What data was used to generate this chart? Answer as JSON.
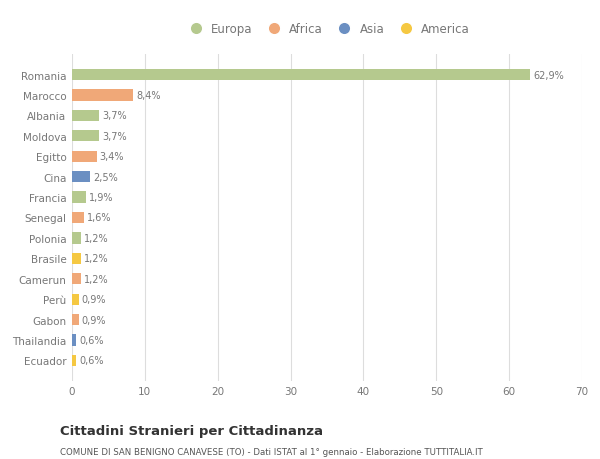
{
  "countries": [
    "Romania",
    "Marocco",
    "Albania",
    "Moldova",
    "Egitto",
    "Cina",
    "Francia",
    "Senegal",
    "Polonia",
    "Brasile",
    "Camerun",
    "Perù",
    "Gabon",
    "Thailandia",
    "Ecuador"
  ],
  "values": [
    62.9,
    8.4,
    3.7,
    3.7,
    3.4,
    2.5,
    1.9,
    1.6,
    1.2,
    1.2,
    1.2,
    0.9,
    0.9,
    0.6,
    0.6
  ],
  "labels": [
    "62,9%",
    "8,4%",
    "3,7%",
    "3,7%",
    "3,4%",
    "2,5%",
    "1,9%",
    "1,6%",
    "1,2%",
    "1,2%",
    "1,2%",
    "0,9%",
    "0,9%",
    "0,6%",
    "0,6%"
  ],
  "colors": [
    "#b5c98e",
    "#f0a878",
    "#b5c98e",
    "#b5c98e",
    "#f0a878",
    "#6b8fc2",
    "#b5c98e",
    "#f0a878",
    "#b5c98e",
    "#f5c842",
    "#f0a878",
    "#f5c842",
    "#f0a878",
    "#6b8fc2",
    "#f5c842"
  ],
  "legend_labels": [
    "Europa",
    "Africa",
    "Asia",
    "America"
  ],
  "legend_colors": [
    "#b5c98e",
    "#f0a878",
    "#6b8fc2",
    "#f5c842"
  ],
  "title": "Cittadini Stranieri per Cittadinanza",
  "subtitle": "COMUNE DI SAN BENIGNO CANAVESE (TO) - Dati ISTAT al 1° gennaio - Elaborazione TUTTITALIA.IT",
  "xlabel_ticks": [
    0,
    10,
    20,
    30,
    40,
    50,
    60,
    70
  ],
  "xlim": [
    0,
    70
  ],
  "bg_color": "#ffffff",
  "plot_bg_color": "#ffffff",
  "grid_color": "#dddddd",
  "text_color": "#777777",
  "title_color": "#333333",
  "subtitle_color": "#555555"
}
